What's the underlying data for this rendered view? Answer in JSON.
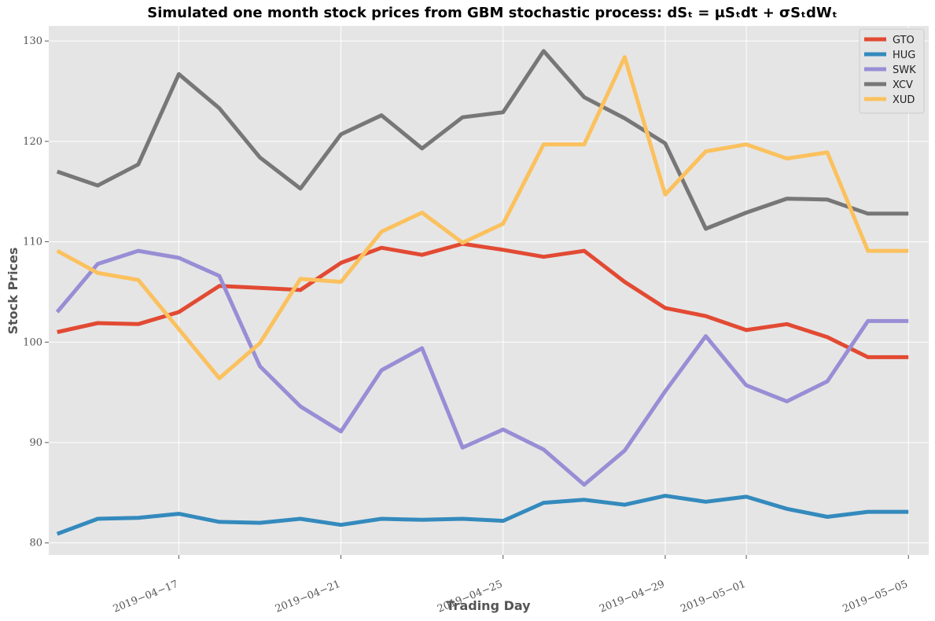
{
  "chart_data": {
    "type": "line",
    "title": "Simulated one month stock prices from GBM stochastic process: dSₜ = μSₜdt + σSₜdWₜ",
    "xlabel": "Trading Day",
    "ylabel": "Stock Prices",
    "x_ticks": [
      "2019-04-17",
      "2019-04-21",
      "2019-04-25",
      "2019-04-29",
      "2019-05-01",
      "2019-05-05"
    ],
    "y_ticks": [
      80,
      90,
      100,
      110,
      120,
      130
    ],
    "ylim": [
      78.8,
      131.5
    ],
    "xlim": [
      "2019-04-13T19:00",
      "2019-05-05T12:00"
    ],
    "grid": true,
    "legend_position": "top-right",
    "x": [
      "2019-04-14",
      "2019-04-15",
      "2019-04-16",
      "2019-04-17",
      "2019-04-18",
      "2019-04-19",
      "2019-04-20",
      "2019-04-21",
      "2019-04-22",
      "2019-04-23",
      "2019-04-24",
      "2019-04-25",
      "2019-04-26",
      "2019-04-27",
      "2019-04-28",
      "2019-04-29",
      "2019-04-30",
      "2019-05-01",
      "2019-05-02",
      "2019-05-03",
      "2019-05-04",
      "2019-05-05"
    ],
    "series": [
      {
        "name": "GTO",
        "color": "#E24A33",
        "values": [
          101.0,
          101.9,
          101.8,
          103.0,
          105.6,
          105.4,
          105.2,
          107.9,
          109.4,
          108.7,
          109.8,
          109.2,
          108.5,
          109.1,
          106.0,
          103.4,
          102.6,
          101.2,
          101.8,
          100.5,
          98.5,
          98.5
        ]
      },
      {
        "name": "HUG",
        "color": "#348ABD",
        "values": [
          80.9,
          82.4,
          82.5,
          82.9,
          82.1,
          82.0,
          82.4,
          81.8,
          82.4,
          82.3,
          82.4,
          82.2,
          84.0,
          84.3,
          83.8,
          84.7,
          84.1,
          84.6,
          83.4,
          82.6,
          83.1,
          83.1
        ]
      },
      {
        "name": "SWK",
        "color": "#988ED5",
        "values": [
          103.0,
          107.8,
          109.1,
          108.4,
          106.6,
          97.6,
          93.6,
          91.1,
          97.2,
          99.4,
          89.5,
          91.3,
          89.3,
          85.8,
          89.2,
          95.1,
          100.6,
          95.7,
          94.1,
          96.1,
          102.1,
          102.1
        ]
      },
      {
        "name": "XCV",
        "color": "#777777",
        "values": [
          117.0,
          115.6,
          117.7,
          126.7,
          123.3,
          118.4,
          115.3,
          120.7,
          122.6,
          119.3,
          122.4,
          122.9,
          129.0,
          124.4,
          122.3,
          119.8,
          111.3,
          112.9,
          114.3,
          114.2,
          112.8,
          112.8
        ]
      },
      {
        "name": "XUD",
        "color": "#FBC15E",
        "values": [
          109.1,
          106.9,
          106.2,
          101.3,
          96.4,
          99.9,
          106.3,
          106.0,
          111.0,
          112.9,
          109.9,
          111.8,
          119.7,
          119.7,
          128.4,
          114.7,
          119.0,
          119.7,
          118.3,
          118.9,
          109.1,
          109.1
        ]
      }
    ]
  }
}
